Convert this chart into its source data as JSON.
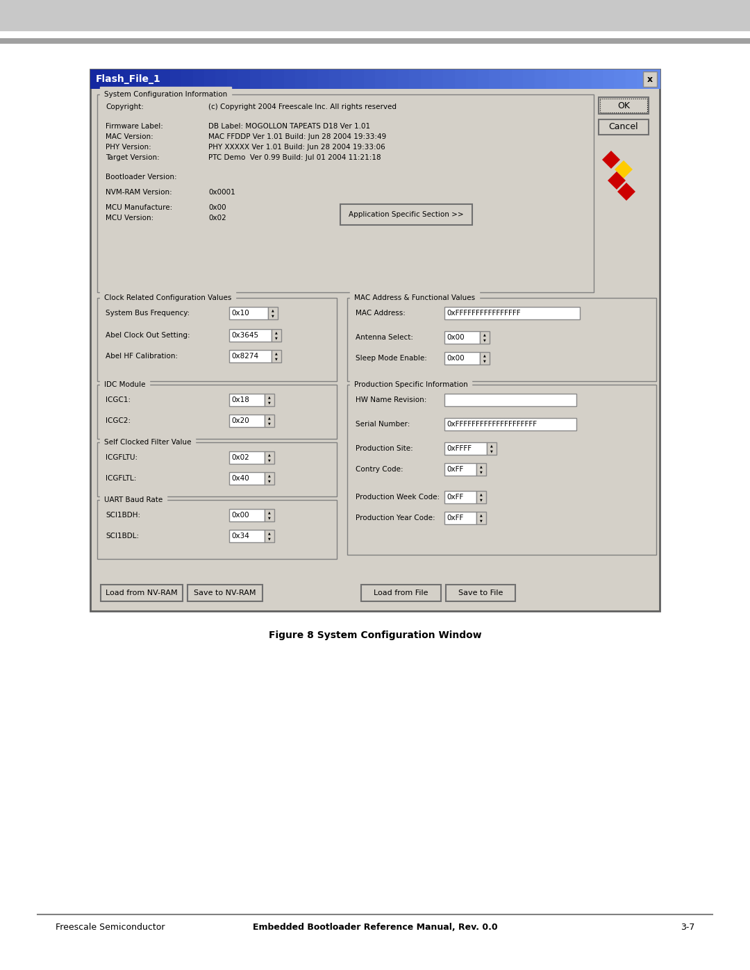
{
  "page_bg": "#ffffff",
  "dialog_bg": "#d4d0c8",
  "dialog_title": "Flash_File_1",
  "sys_info_section": "System Configuration Information",
  "copyright_label": "Copyright:",
  "copyright_val": "(c) Copyright 2004 Freescale Inc. All rights reserved",
  "firmware_label": "Firmware Label:",
  "firmware_val": "DB Label: MOGOLLON TAPEATS D18 Ver 1.01",
  "mac_version_label": "MAC Version:",
  "mac_version_val": "MAC FFDDP Ver 1.01 Build: Jun 28 2004 19:33:49",
  "phy_version_label": "PHY Version:",
  "phy_version_val": "PHY XXXXX Ver 1.01 Build: Jun 28 2004 19:33:06",
  "target_version_label": "Target Version:",
  "target_version_val": "PTC Demo  Ver 0.99 Build: Jul 01 2004 11:21:18",
  "bootloader_label": "Bootloader Version:",
  "nvm_label": "NVM-RAM Version:",
  "nvm_val": "0x0001",
  "mcu_manuf_label": "MCU Manufacture:",
  "mcu_manuf_val": "0x00",
  "mcu_version_label": "MCU Version:",
  "mcu_version_val": "0x02",
  "app_specific_btn": "Application Specific Section >>",
  "ok_btn": "OK",
  "cancel_btn": "Cancel",
  "clock_section": "Clock Related Configuration Values",
  "sys_bus_label": "System Bus Frequency:",
  "sys_bus_val": "0x10",
  "abel_clock_label": "Abel Clock Out Setting:",
  "abel_clock_val": "0x3645",
  "abel_hf_label": "Abel HF Calibration:",
  "abel_hf_val": "0x8274",
  "idc_section": "IDC Module",
  "icgc1_label": "ICGC1:",
  "icgc1_val": "0x18",
  "icgc2_label": "ICGC2:",
  "icgc2_val": "0x20",
  "self_clocked_section": "Self Clocked Filter Value",
  "icgfltu_label": "ICGFLTU:",
  "icgfltu_val": "0x02",
  "icgfltl_label": "ICGFLTL:",
  "icgfltl_val": "0x40",
  "uart_section": "UART Baud Rate",
  "sci1bdh_label": "SCI1BDH:",
  "sci1bdh_val": "0x00",
  "sci1bdl_label": "SCI1BDL:",
  "sci1bdl_val": "0x34",
  "mac_addr_section": "MAC Address & Functional Values",
  "mac_addr_label": "MAC Address:",
  "mac_addr_val": "0xFFFFFFFFFFFFFFFF",
  "antenna_label": "Antenna Select:",
  "antenna_val": "0x00",
  "sleep_mode_label": "Sleep Mode Enable:",
  "sleep_mode_val": "0x00",
  "prod_section": "Production Specific Information",
  "hw_name_label": "HW Name Revision:",
  "hw_name_val": "",
  "serial_label": "Serial Number:",
  "serial_val": "0xFFFFFFFFFFFFFFFFFFFF",
  "prod_site_label": "Production Site:",
  "prod_site_val": "0xFFFF",
  "country_label": "Contry Code:",
  "country_val": "0xFF",
  "prod_week_label": "Production Week Code:",
  "prod_week_val": "0xFF",
  "prod_year_label": "Production Year Code:",
  "prod_year_val": "0xFF",
  "load_nv_btn": "Load from NV-RAM",
  "save_nv_btn": "Save to NV-RAM",
  "load_file_btn": "Load from File",
  "save_file_btn": "Save to File",
  "caption": "Figure 8 System Configuration Window",
  "footer_left": "Freescale Semiconductor",
  "footer_center": "Embedded Bootloader Reference Manual, Rev. 0.0",
  "footer_right": "3-7"
}
